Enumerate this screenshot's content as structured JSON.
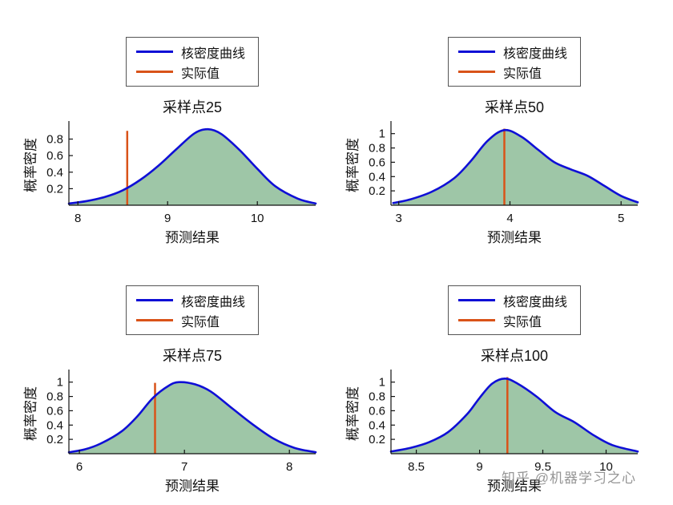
{
  "watermark": "知乎 @机器学习之心",
  "colors": {
    "curve": "#0f0fd6",
    "actual": "#d95319",
    "fill": "#3e8e4f",
    "fill_opacity": 0.5,
    "axis": "#111111"
  },
  "chart_data": [
    {
      "type": "area",
      "title": "采样点25",
      "xlabel": "预测结果",
      "ylabel": "概率密度",
      "legend": [
        "核密度曲线",
        "实际值"
      ],
      "legend_position": "above plot, boxed",
      "grid": false,
      "xlim": [
        7.9,
        10.65
      ],
      "ylim": [
        0,
        0.97
      ],
      "xticks": [
        8,
        9,
        10
      ],
      "yticks": [
        0.2,
        0.4,
        0.6,
        0.8
      ],
      "actual_value": 8.55,
      "actual_height": 0.9,
      "kde": {
        "x": [
          7.9,
          8.1,
          8.3,
          8.5,
          8.7,
          8.9,
          9.1,
          9.3,
          9.45,
          9.6,
          9.8,
          10.0,
          10.2,
          10.45,
          10.65
        ],
        "y": [
          0.02,
          0.05,
          0.1,
          0.18,
          0.31,
          0.48,
          0.68,
          0.87,
          0.92,
          0.86,
          0.67,
          0.44,
          0.23,
          0.08,
          0.02
        ]
      }
    },
    {
      "type": "area",
      "title": "采样点50",
      "xlabel": "预测结果",
      "ylabel": "概率密度",
      "legend": [
        "核密度曲线",
        "实际值"
      ],
      "legend_position": "above plot, boxed",
      "grid": false,
      "xlim": [
        2.93,
        5.15
      ],
      "ylim": [
        0,
        1.12
      ],
      "xticks": [
        3,
        4,
        5
      ],
      "yticks": [
        0.2,
        0.4,
        0.6,
        0.8,
        1
      ],
      "actual_value": 3.95,
      "actual_height": 1.07,
      "kde": {
        "x": [
          2.95,
          3.1,
          3.3,
          3.5,
          3.65,
          3.8,
          3.95,
          4.1,
          4.25,
          4.4,
          4.55,
          4.7,
          4.85,
          5.0,
          5.15
        ],
        "y": [
          0.03,
          0.08,
          0.19,
          0.38,
          0.62,
          0.9,
          1.05,
          0.96,
          0.78,
          0.6,
          0.5,
          0.41,
          0.27,
          0.13,
          0.04
        ]
      }
    },
    {
      "type": "area",
      "title": "采样点75",
      "xlabel": "预测结果",
      "ylabel": "概率密度",
      "legend": [
        "核密度曲线",
        "实际值"
      ],
      "legend_position": "above plot, boxed",
      "grid": false,
      "xlim": [
        5.9,
        8.25
      ],
      "ylim": [
        0,
        1.12
      ],
      "xticks": [
        6,
        7,
        8
      ],
      "yticks": [
        0.2,
        0.4,
        0.6,
        0.8,
        1
      ],
      "actual_value": 6.72,
      "actual_height": 0.99,
      "kde": {
        "x": [
          5.9,
          6.05,
          6.2,
          6.4,
          6.55,
          6.7,
          6.85,
          6.95,
          7.1,
          7.25,
          7.45,
          7.65,
          7.85,
          8.05,
          8.25
        ],
        "y": [
          0.02,
          0.06,
          0.14,
          0.31,
          0.52,
          0.78,
          0.95,
          1.0,
          0.97,
          0.87,
          0.64,
          0.41,
          0.21,
          0.08,
          0.02
        ]
      }
    },
    {
      "type": "area",
      "title": "采样点100",
      "xlabel": "预测结果",
      "ylabel": "概率密度",
      "legend": [
        "核密度曲线",
        "实际值"
      ],
      "legend_position": "above plot, boxed",
      "grid": false,
      "xlim": [
        8.3,
        10.25
      ],
      "ylim": [
        0,
        1.12
      ],
      "xticks": [
        8.5,
        9,
        9.5,
        10
      ],
      "yticks": [
        0.2,
        0.4,
        0.6,
        0.8,
        1
      ],
      "actual_value": 9.22,
      "actual_height": 1.07,
      "kde": {
        "x": [
          8.3,
          8.45,
          8.6,
          8.75,
          8.9,
          9.0,
          9.1,
          9.2,
          9.3,
          9.45,
          9.6,
          9.75,
          9.9,
          10.05,
          10.25
        ],
        "y": [
          0.03,
          0.08,
          0.16,
          0.3,
          0.55,
          0.78,
          0.98,
          1.05,
          0.98,
          0.8,
          0.58,
          0.44,
          0.26,
          0.12,
          0.03
        ]
      }
    }
  ]
}
